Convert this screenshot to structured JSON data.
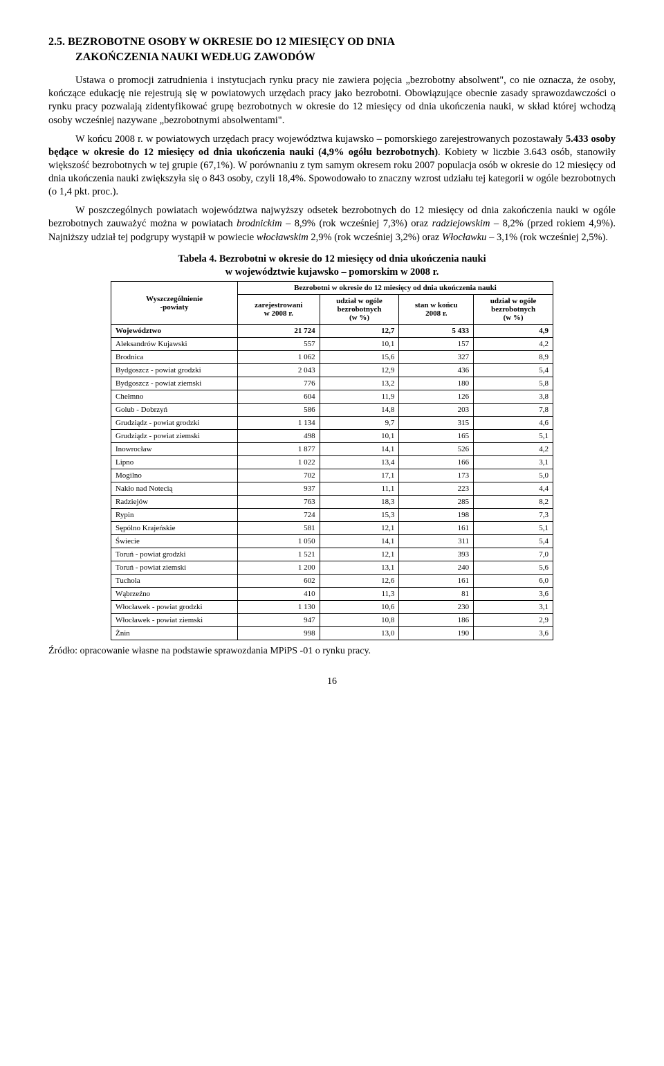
{
  "section": {
    "number": "2.5.",
    "title_line1": "BEZROBOTNE OSOBY W OKRESIE DO 12 MIESIĘCY OD DNIA",
    "title_line2": "ZAKOŃCZENIA NAUKI WEDŁUG ZAWODÓW"
  },
  "paragraphs": {
    "p1": "Ustawa o promocji zatrudnienia i instytucjach rynku pracy nie zawiera pojęcia „bezrobotny absolwent\", co nie oznacza, że osoby, kończące edukację nie rejestrują się w powiatowych urzędach pracy jako bezrobotni. Obowiązujące obecnie zasady sprawozdawczości o rynku pracy pozwalają zidentyfikować grupę bezrobotnych w okresie do 12 miesięcy od dnia ukończenia nauki, w skład której wchodzą osoby wcześniej nazywane „bezrobotnymi absolwentami\".",
    "p2a": "W końcu 2008 r. w powiatowych urzędach pracy województwa kujawsko – pomorskiego zarejestrowanych pozostawały ",
    "p2b": "5.433 osoby będące w okresie do 12 miesięcy od dnia ukończenia nauki (4,9% ogółu bezrobotnych)",
    "p2c": ". Kobiety w liczbie 3.643 osób, stanowiły większość bezrobotnych w tej grupie (67,1%). W porównaniu z tym samym okresem roku 2007 populacja osób w okresie do 12 miesięcy od dnia ukończenia nauki zwiększyła się o 843 osoby, czyli 18,4%. Spowodowało to znaczny wzrost udziału tej kategorii w ogóle bezrobotnych (o 1,4 pkt. proc.).",
    "p3a": "W poszczególnych powiatach województwa najwyższy odsetek bezrobotnych do 12 miesięcy od dnia zakończenia nauki w ogóle bezrobotnych zauważyć można w powiatach ",
    "p3b": "brodnickim",
    "p3c": " – 8,9% (rok wcześniej 7,3%) oraz ",
    "p3d": "radziejowskim",
    "p3e": " – 8,2% (przed rokiem 4,9%). Najniższy udział tej podgrupy wystąpił w powiecie ",
    "p3f": "włocławskim",
    "p3g": " 2,9% (rok wcześniej 3,2%) oraz ",
    "p3h": "Włocławku",
    "p3i": " – 3,1% (rok wcześniej 2,5%)."
  },
  "table": {
    "caption_line1": "Tabela 4. Bezrobotni w okresie do 12 miesięcy od dnia ukończenia nauki",
    "caption_line2": "w województwie kujawsko – pomorskim w 2008 r.",
    "header_top": "Bezrobotni w okresie do 12 miesięcy od dnia ukończenia nauki",
    "header_spec": "Wyszczególnienie\n-powiaty",
    "header_c1": "zarejestrowani\nw 2008 r.",
    "header_c2": "udział w ogóle\nbezrobotnych\n(w %)",
    "header_c3": "stan w końcu\n2008 r.",
    "header_c4": "udział w ogóle\nbezrobotnych\n(w %)",
    "rows": [
      {
        "label": "Województwo",
        "c1": "21 724",
        "c2": "12,7",
        "c3": "5 433",
        "c4": "4,9",
        "total": true
      },
      {
        "label": "Aleksandrów Kujawski",
        "c1": "557",
        "c2": "10,1",
        "c3": "157",
        "c4": "4,2"
      },
      {
        "label": "Brodnica",
        "c1": "1 062",
        "c2": "15,6",
        "c3": "327",
        "c4": "8,9"
      },
      {
        "label": "Bydgoszcz - powiat grodzki",
        "c1": "2 043",
        "c2": "12,9",
        "c3": "436",
        "c4": "5,4"
      },
      {
        "label": "Bydgoszcz - powiat ziemski",
        "c1": "776",
        "c2": "13,2",
        "c3": "180",
        "c4": "5,8"
      },
      {
        "label": "Chełmno",
        "c1": "604",
        "c2": "11,9",
        "c3": "126",
        "c4": "3,8"
      },
      {
        "label": "Golub - Dobrzyń",
        "c1": "586",
        "c2": "14,8",
        "c3": "203",
        "c4": "7,8"
      },
      {
        "label": "Grudziądz - powiat grodzki",
        "c1": "1 134",
        "c2": "9,7",
        "c3": "315",
        "c4": "4,6"
      },
      {
        "label": "Grudziądz - powiat ziemski",
        "c1": "498",
        "c2": "10,1",
        "c3": "165",
        "c4": "5,1"
      },
      {
        "label": "Inowrocław",
        "c1": "1 877",
        "c2": "14,1",
        "c3": "526",
        "c4": "4,2"
      },
      {
        "label": "Lipno",
        "c1": "1 022",
        "c2": "13,4",
        "c3": "166",
        "c4": "3,1"
      },
      {
        "label": "Mogilno",
        "c1": "702",
        "c2": "17,1",
        "c3": "173",
        "c4": "5,0"
      },
      {
        "label": "Nakło nad Notecią",
        "c1": "937",
        "c2": "11,1",
        "c3": "223",
        "c4": "4,4"
      },
      {
        "label": "Radziejów",
        "c1": "763",
        "c2": "18,3",
        "c3": "285",
        "c4": "8,2"
      },
      {
        "label": "Rypin",
        "c1": "724",
        "c2": "15,3",
        "c3": "198",
        "c4": "7,3"
      },
      {
        "label": "Sępólno Krajeńskie",
        "c1": "581",
        "c2": "12,1",
        "c3": "161",
        "c4": "5,1"
      },
      {
        "label": "Świecie",
        "c1": "1 050",
        "c2": "14,1",
        "c3": "311",
        "c4": "5,4"
      },
      {
        "label": "Toruń - powiat grodzki",
        "c1": "1 521",
        "c2": "12,1",
        "c3": "393",
        "c4": "7,0"
      },
      {
        "label": "Toruń - powiat ziemski",
        "c1": "1 200",
        "c2": "13,1",
        "c3": "240",
        "c4": "5,6"
      },
      {
        "label": "Tuchola",
        "c1": "602",
        "c2": "12,6",
        "c3": "161",
        "c4": "6,0"
      },
      {
        "label": "Wąbrzeźno",
        "c1": "410",
        "c2": "11,3",
        "c3": "81",
        "c4": "3,6"
      },
      {
        "label": "Włocławek - powiat grodzki",
        "c1": "1 130",
        "c2": "10,6",
        "c3": "230",
        "c4": "3,1"
      },
      {
        "label": "Włocławek - powiat ziemski",
        "c1": "947",
        "c2": "10,8",
        "c3": "186",
        "c4": "2,9"
      },
      {
        "label": "Żnin",
        "c1": "998",
        "c2": "13,0",
        "c3": "190",
        "c4": "3,6"
      }
    ]
  },
  "source": "Źródło: opracowanie własne na podstawie sprawozdania MPiPS -01 o rynku pracy.",
  "pagenum": "16"
}
